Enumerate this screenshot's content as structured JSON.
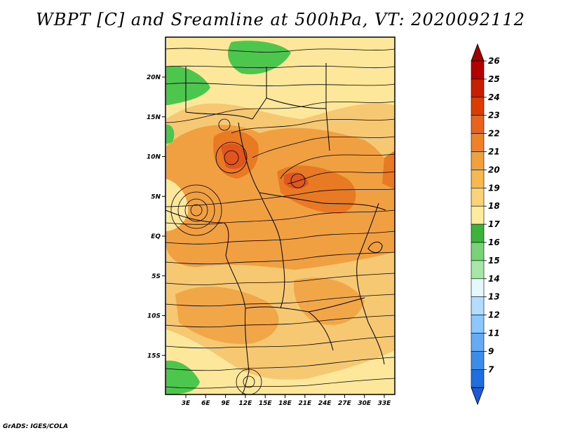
{
  "title": "WBPT [C] and Sreamline at 500hPa, VT: 2020092112",
  "credit": "GrADS: IGES/COLA",
  "map": {
    "lon_labels": [
      "3E",
      "6E",
      "9E",
      "12E",
      "15E",
      "18E",
      "21E",
      "24E",
      "27E",
      "30E",
      "33E"
    ],
    "lat_labels": [
      "20N",
      "15N",
      "10N",
      "5N",
      "EQ",
      "5S",
      "10S",
      "15S"
    ],
    "colors": {
      "land_base": "#f5c871",
      "warm": "#f0a040",
      "hot": "#e97a24",
      "hottest": "#dc4a1c",
      "pale": "#fde79a",
      "green": "#4cc64c",
      "streamline": "#000000",
      "border": "#000000"
    }
  },
  "colorbar": {
    "labels": [
      "26",
      "25",
      "24",
      "23",
      "22",
      "21",
      "20",
      "19",
      "18",
      "17",
      "16",
      "15",
      "14",
      "13",
      "12",
      "11",
      "9",
      "7"
    ],
    "colors": [
      "#b40000",
      "#c81e00",
      "#dc3c00",
      "#e8641e",
      "#ef8228",
      "#f0a03c",
      "#f5b950",
      "#fad278",
      "#fcec9c",
      "#3cb43c",
      "#78d278",
      "#a8e6a8",
      "#e6f8ff",
      "#b4dcff",
      "#8cc8ff",
      "#64aaf5",
      "#3c8ceb",
      "#1e6ee1"
    ],
    "top_arrow_color": "#a00000",
    "bottom_arrow_color": "#1e5ad2"
  }
}
